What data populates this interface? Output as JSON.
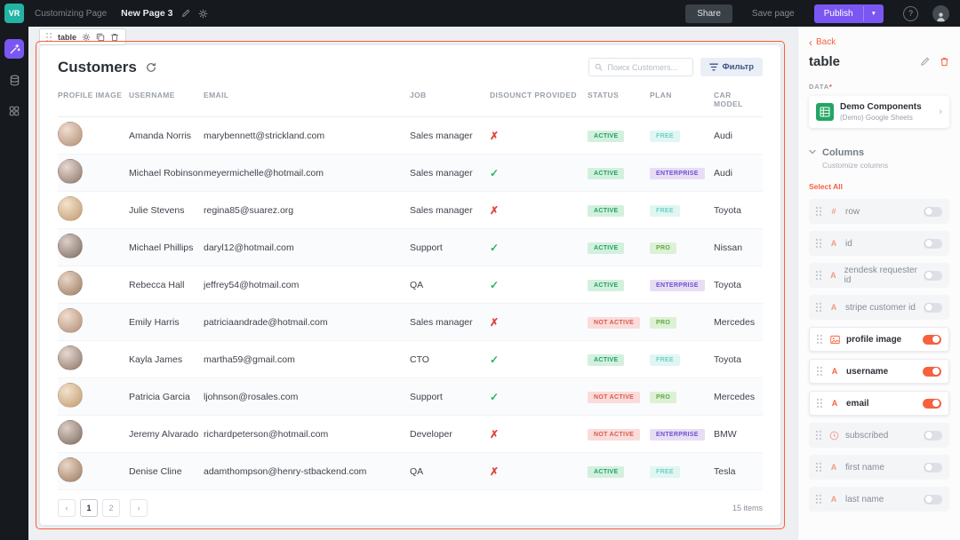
{
  "topbar": {
    "logo": "VR",
    "status_text": "Customizing Page",
    "page_name": "New Page 3",
    "share_label": "Share",
    "save_label": "Save page",
    "publish_label": "Publish"
  },
  "component_toolbar": {
    "label": "table"
  },
  "table": {
    "title": "Customers",
    "search_placeholder": "Поиск Customers...",
    "filter_label": "Фильтр",
    "columns": [
      "PROFILE IMAGE",
      "USERNAME",
      "EMAIL",
      "JOB",
      "DISOUNCT PROVIDED",
      "STATUS",
      "PLAN",
      "CAR MODEL"
    ],
    "rows": [
      {
        "username": "Amanda Norris",
        "email": "marybennett@strickland.com",
        "job": "Sales manager",
        "discount": false,
        "status": "ACTIVE",
        "plan": "FREE",
        "car": "Audi"
      },
      {
        "username": "Michael Robinson",
        "email": "meyermichelle@hotmail.com",
        "job": "Sales manager",
        "discount": true,
        "status": "ACTIVE",
        "plan": "ENTERPRISE",
        "car": "Audi"
      },
      {
        "username": "Julie Stevens",
        "email": "regina85@suarez.org",
        "job": "Sales manager",
        "discount": false,
        "status": "ACTIVE",
        "plan": "FREE",
        "car": "Toyota"
      },
      {
        "username": "Michael Phillips",
        "email": "daryl12@hotmail.com",
        "job": "Support",
        "discount": true,
        "status": "ACTIVE",
        "plan": "PRO",
        "car": "Nissan"
      },
      {
        "username": "Rebecca Hall",
        "email": "jeffrey54@hotmail.com",
        "job": "QA",
        "discount": true,
        "status": "ACTIVE",
        "plan": "ENTERPRISE",
        "car": "Toyota"
      },
      {
        "username": "Emily Harris",
        "email": "patriciaandrade@hotmail.com",
        "job": "Sales manager",
        "discount": false,
        "status": "NOT ACTIVE",
        "plan": "PRO",
        "car": "Mercedes"
      },
      {
        "username": "Kayla James",
        "email": "martha59@gmail.com",
        "job": "CTO",
        "discount": true,
        "status": "ACTIVE",
        "plan": "FREE",
        "car": "Toyota"
      },
      {
        "username": "Patricia Garcia",
        "email": "ljohnson@rosales.com",
        "job": "Support",
        "discount": true,
        "status": "NOT ACTIVE",
        "plan": "PRO",
        "car": "Mercedes"
      },
      {
        "username": "Jeremy Alvarado",
        "email": "richardpeterson@hotmail.com",
        "job": "Developer",
        "discount": false,
        "status": "NOT ACTIVE",
        "plan": "ENTERPRISE",
        "car": "BMW"
      },
      {
        "username": "Denise Cline",
        "email": "adamthompson@henry-stbackend.com",
        "job": "QA",
        "discount": false,
        "status": "ACTIVE",
        "plan": "FREE",
        "car": "Tesla"
      }
    ],
    "pagination": {
      "pages": [
        "1",
        "2"
      ],
      "active_page": "1",
      "items_label": "15 items"
    }
  },
  "panel": {
    "back_label": "Back",
    "title": "table",
    "data_label": "DATA",
    "required_mark": "*",
    "source": {
      "name": "Demo Components",
      "subtitle": "(Demo) Google Sheets"
    },
    "columns_section": {
      "title": "Columns",
      "subtitle": "Customize columns",
      "select_all": "Select All"
    },
    "fields": [
      {
        "icon": "hash",
        "name": "row",
        "enabled": false
      },
      {
        "icon": "text",
        "name": "id",
        "enabled": false
      },
      {
        "icon": "text",
        "name": "zendesk requester id",
        "enabled": false
      },
      {
        "icon": "text",
        "name": "stripe customer id",
        "enabled": false
      },
      {
        "icon": "image",
        "name": "profile image",
        "enabled": true
      },
      {
        "icon": "text",
        "name": "username",
        "enabled": true
      },
      {
        "icon": "text",
        "name": "email",
        "enabled": true
      },
      {
        "icon": "clock",
        "name": "subscribed",
        "enabled": false
      },
      {
        "icon": "text",
        "name": "first name",
        "enabled": false
      },
      {
        "icon": "text",
        "name": "last name",
        "enabled": false
      }
    ]
  },
  "colors": {
    "accent": "#f8613e",
    "publish": "#7a57f3",
    "selection": "#ff5b38",
    "logo": "#22b3a4"
  }
}
